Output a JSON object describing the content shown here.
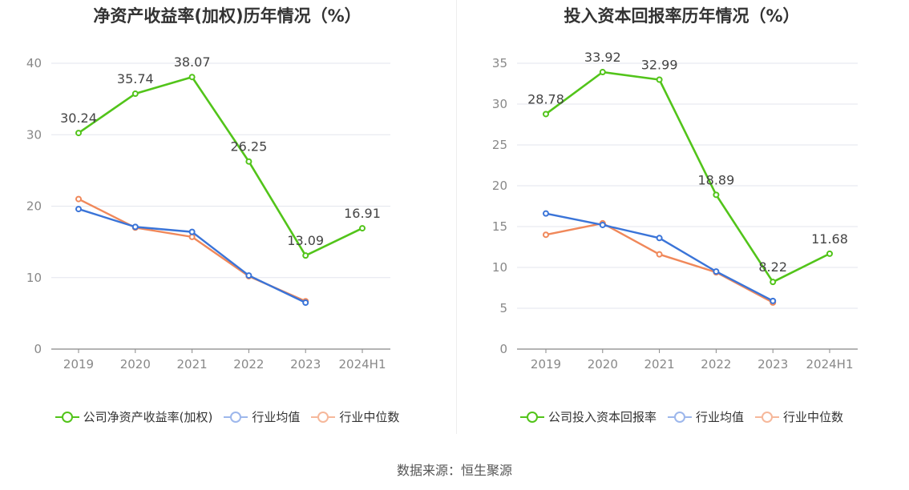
{
  "source": "数据来源：恒生聚源",
  "chart_data": [
    {
      "type": "line",
      "title": "净资产收益率(加权)历年情况（%）",
      "categories": [
        "2019",
        "2020",
        "2021",
        "2022",
        "2023",
        "2024H1"
      ],
      "ylim": [
        0,
        40
      ],
      "yticks": [
        "0",
        "10",
        "20",
        "30",
        "40"
      ],
      "grid": true,
      "legend_position": "bottom",
      "series": [
        {
          "name": "公司净资产收益率(加权)",
          "color": "#52c41a",
          "values": [
            30.24,
            35.74,
            38.07,
            26.25,
            13.09,
            16.91
          ],
          "labels": [
            "30.24",
            "35.74",
            "38.07",
            "26.25",
            "13.09",
            "16.91"
          ]
        },
        {
          "name": "行业均值",
          "color": "#3a74d8",
          "values": [
            19.6,
            17.1,
            16.4,
            10.3,
            6.5,
            null
          ]
        },
        {
          "name": "行业中位数",
          "color": "#f0885a",
          "values": [
            21.0,
            17.0,
            15.7,
            10.2,
            6.7,
            null
          ]
        }
      ]
    },
    {
      "type": "line",
      "title": "投入资本回报率历年情况（%）",
      "categories": [
        "2019",
        "2020",
        "2021",
        "2022",
        "2023",
        "2024H1"
      ],
      "ylim": [
        0,
        35
      ],
      "yticks": [
        "0",
        "5",
        "10",
        "15",
        "20",
        "25",
        "30",
        "35"
      ],
      "grid": true,
      "legend_position": "bottom",
      "series": [
        {
          "name": "公司投入资本回报率",
          "color": "#52c41a",
          "values": [
            28.78,
            33.92,
            32.99,
            18.89,
            8.22,
            11.68
          ],
          "labels": [
            "28.78",
            "33.92",
            "32.99",
            "18.89",
            "8.22",
            "11.68"
          ]
        },
        {
          "name": "行业均值",
          "color": "#3a74d8",
          "values": [
            16.6,
            15.2,
            13.6,
            9.5,
            5.9,
            null
          ]
        },
        {
          "name": "行业中位数",
          "color": "#f0885a",
          "values": [
            14.0,
            15.4,
            11.6,
            9.4,
            5.7,
            null
          ]
        }
      ]
    }
  ]
}
